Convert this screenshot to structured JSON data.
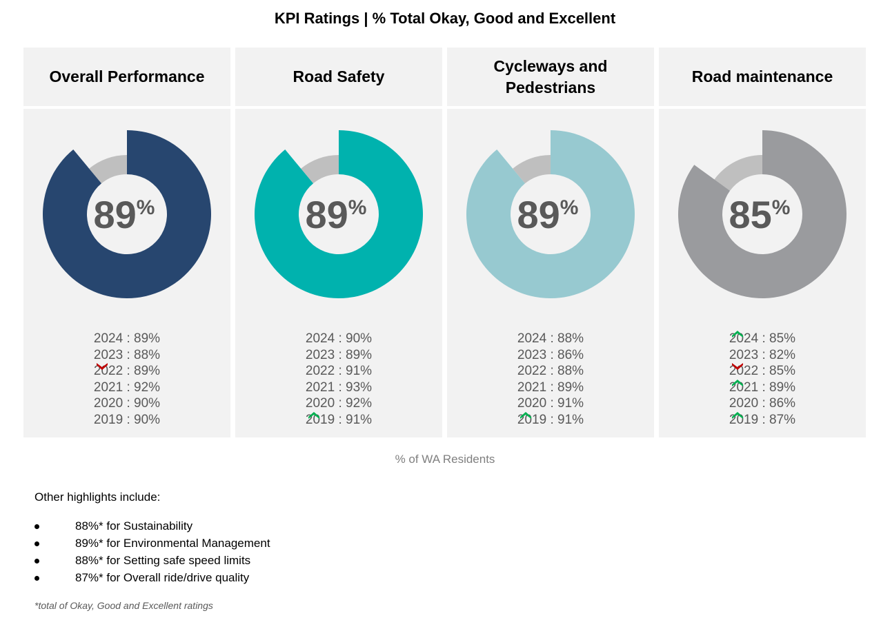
{
  "title": "KPI Ratings | %  Total Okay, Good and Excellent",
  "chart_data": [
    {
      "type": "donut",
      "title": "Overall Performance",
      "value": 89,
      "color": "#27466f",
      "history": [
        {
          "year": "2024",
          "value": "89%"
        },
        {
          "year": "2023",
          "value": "88%"
        },
        {
          "year": "2022",
          "value": "89%",
          "trend": "down"
        },
        {
          "year": "2021",
          "value": "92%"
        },
        {
          "year": "2020",
          "value": "90%"
        },
        {
          "year": "2019",
          "value": "90%"
        }
      ]
    },
    {
      "type": "donut",
      "title": "Road Safety",
      "value": 89,
      "color": "#00b2ae",
      "history": [
        {
          "year": "2024",
          "value": "90%"
        },
        {
          "year": "2023",
          "value": "89%"
        },
        {
          "year": "2022",
          "value": "91%"
        },
        {
          "year": "2021",
          "value": "93%"
        },
        {
          "year": "2020",
          "value": "92%"
        },
        {
          "year": "2019",
          "value": "91%",
          "trend": "up"
        }
      ]
    },
    {
      "type": "donut",
      "title": "Cycleways and Pedestrians",
      "value": 89,
      "color": "#97c9d0",
      "history": [
        {
          "year": "2024",
          "value": "88%"
        },
        {
          "year": "2023",
          "value": "86%"
        },
        {
          "year": "2022",
          "value": "88%"
        },
        {
          "year": "2021",
          "value": "89%"
        },
        {
          "year": "2020",
          "value": "91%"
        },
        {
          "year": "2019",
          "value": "91%",
          "trend": "up"
        }
      ]
    },
    {
      "type": "donut",
      "title": "Road maintenance",
      "value": 85,
      "color": "#9a9b9e",
      "history": [
        {
          "year": "2024",
          "value": "85%",
          "trend": "up"
        },
        {
          "year": "2023",
          "value": "82%"
        },
        {
          "year": "2022",
          "value": "85%",
          "trend": "down"
        },
        {
          "year": "2021",
          "value": "89%",
          "trend": "up"
        },
        {
          "year": "2020",
          "value": "86%"
        },
        {
          "year": "2019",
          "value": "87%",
          "trend": "up"
        }
      ]
    }
  ],
  "colors": {
    "remainder": "#bfbfbf",
    "up": "#00b050",
    "down": "#c00000"
  },
  "subtitle": "% of WA Residents",
  "highlights_heading": "Other highlights include:",
  "highlights": [
    "88%* for Sustainability",
    "89%* for Environmental Management",
    "88%* for Setting safe speed limits",
    "87%* for Overall ride/drive quality"
  ],
  "footnote": "*total of Okay, Good and Excellent ratings"
}
